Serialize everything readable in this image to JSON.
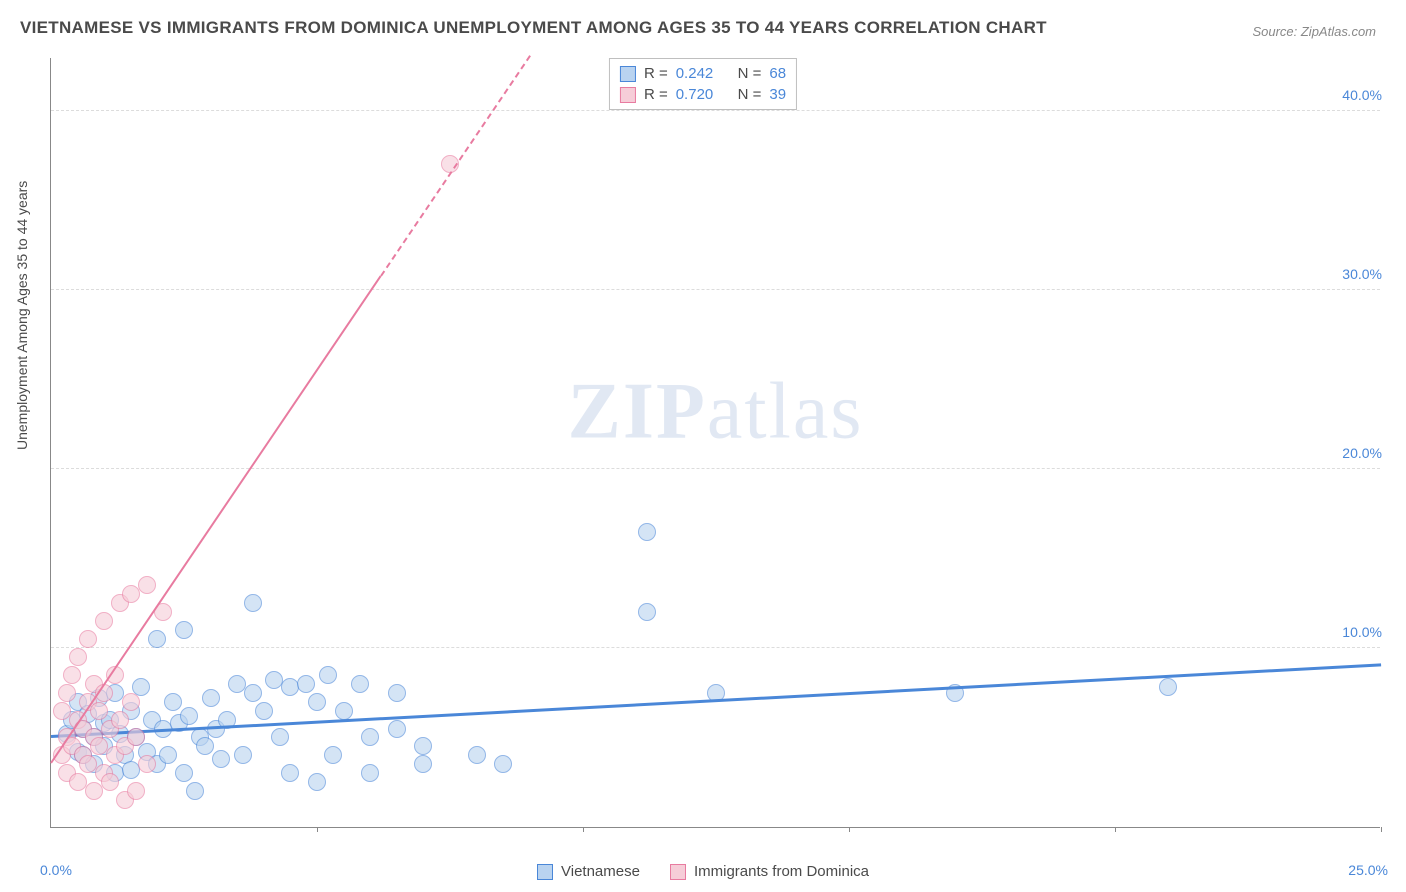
{
  "title": "VIETNAMESE VS IMMIGRANTS FROM DOMINICA UNEMPLOYMENT AMONG AGES 35 TO 44 YEARS CORRELATION CHART",
  "source": "Source: ZipAtlas.com",
  "ylabel": "Unemployment Among Ages 35 to 44 years",
  "watermark_a": "ZIP",
  "watermark_b": "atlas",
  "chart": {
    "type": "scatter",
    "background_color": "#ffffff",
    "grid_color": "#dcdcdc",
    "axis_color": "#888888",
    "tick_label_color": "#4a87d8",
    "tick_fontsize": 14,
    "xlim": [
      0,
      25
    ],
    "ylim": [
      0,
      43
    ],
    "xticks": [
      0,
      5,
      10,
      15,
      20,
      25
    ],
    "xtick_labels": {
      "min": "0.0%",
      "max": "25.0%"
    },
    "yticks": [
      10,
      20,
      30,
      40
    ],
    "ytick_labels": [
      "10.0%",
      "20.0%",
      "30.0%",
      "40.0%"
    ],
    "marker_radius": 9,
    "marker_opacity": 0.6,
    "series": [
      {
        "name": "Vietnamese",
        "color_fill": "#b9d3f0",
        "color_stroke": "#4a87d8",
        "R": "0.242",
        "N": "68",
        "trend": {
          "x1": 0,
          "y1": 5.0,
          "x2": 25,
          "y2": 9.0,
          "width": 2.5
        },
        "points": [
          [
            0.3,
            5.2
          ],
          [
            0.4,
            6.0
          ],
          [
            0.5,
            4.2
          ],
          [
            0.5,
            7.0
          ],
          [
            0.6,
            5.5
          ],
          [
            0.6,
            4.0
          ],
          [
            0.7,
            6.3
          ],
          [
            0.8,
            5.0
          ],
          [
            0.8,
            3.5
          ],
          [
            0.9,
            7.2
          ],
          [
            1.0,
            5.8
          ],
          [
            1.0,
            4.5
          ],
          [
            1.1,
            6.0
          ],
          [
            1.2,
            3.0
          ],
          [
            1.2,
            7.5
          ],
          [
            1.3,
            5.2
          ],
          [
            1.4,
            4.0
          ],
          [
            1.5,
            6.5
          ],
          [
            1.5,
            3.2
          ],
          [
            1.6,
            5.0
          ],
          [
            1.7,
            7.8
          ],
          [
            1.8,
            4.2
          ],
          [
            1.9,
            6.0
          ],
          [
            2.0,
            3.5
          ],
          [
            2.0,
            10.5
          ],
          [
            2.1,
            5.5
          ],
          [
            2.2,
            4.0
          ],
          [
            2.3,
            7.0
          ],
          [
            2.4,
            5.8
          ],
          [
            2.5,
            3.0
          ],
          [
            2.5,
            11.0
          ],
          [
            2.6,
            6.2
          ],
          [
            2.7,
            2.0
          ],
          [
            2.8,
            5.0
          ],
          [
            2.9,
            4.5
          ],
          [
            3.0,
            7.2
          ],
          [
            3.1,
            5.5
          ],
          [
            3.2,
            3.8
          ],
          [
            3.3,
            6.0
          ],
          [
            3.5,
            8.0
          ],
          [
            3.6,
            4.0
          ],
          [
            3.8,
            7.5
          ],
          [
            3.8,
            12.5
          ],
          [
            4.0,
            6.5
          ],
          [
            4.2,
            8.2
          ],
          [
            4.3,
            5.0
          ],
          [
            4.5,
            7.8
          ],
          [
            4.5,
            3.0
          ],
          [
            4.8,
            8.0
          ],
          [
            5.0,
            7.0
          ],
          [
            5.0,
            2.5
          ],
          [
            5.2,
            8.5
          ],
          [
            5.3,
            4.0
          ],
          [
            5.5,
            6.5
          ],
          [
            5.8,
            8.0
          ],
          [
            6.0,
            5.0
          ],
          [
            6.0,
            3.0
          ],
          [
            6.5,
            7.5
          ],
          [
            6.5,
            5.5
          ],
          [
            7.0,
            4.5
          ],
          [
            7.0,
            3.5
          ],
          [
            8.0,
            4.0
          ],
          [
            8.5,
            3.5
          ],
          [
            11.2,
            16.5
          ],
          [
            11.2,
            12.0
          ],
          [
            12.5,
            7.5
          ],
          [
            17.0,
            7.5
          ],
          [
            21.0,
            7.8
          ]
        ]
      },
      {
        "name": "Immigrants from Dominica",
        "color_fill": "#f6cdd8",
        "color_stroke": "#e87ba0",
        "R": "0.720",
        "N": "39",
        "trend": {
          "x1": 0,
          "y1": 3.5,
          "x2": 9.0,
          "y2": 43,
          "width": 2,
          "dash_from_x": 6.2
        },
        "points": [
          [
            0.2,
            4.0
          ],
          [
            0.2,
            6.5
          ],
          [
            0.3,
            5.0
          ],
          [
            0.3,
            3.0
          ],
          [
            0.3,
            7.5
          ],
          [
            0.4,
            4.5
          ],
          [
            0.4,
            8.5
          ],
          [
            0.5,
            2.5
          ],
          [
            0.5,
            6.0
          ],
          [
            0.5,
            9.5
          ],
          [
            0.6,
            4.0
          ],
          [
            0.6,
            5.5
          ],
          [
            0.7,
            3.5
          ],
          [
            0.7,
            7.0
          ],
          [
            0.7,
            10.5
          ],
          [
            0.8,
            5.0
          ],
          [
            0.8,
            2.0
          ],
          [
            0.8,
            8.0
          ],
          [
            0.9,
            4.5
          ],
          [
            0.9,
            6.5
          ],
          [
            1.0,
            3.0
          ],
          [
            1.0,
            7.5
          ],
          [
            1.0,
            11.5
          ],
          [
            1.1,
            5.5
          ],
          [
            1.1,
            2.5
          ],
          [
            1.2,
            4.0
          ],
          [
            1.2,
            8.5
          ],
          [
            1.3,
            6.0
          ],
          [
            1.3,
            12.5
          ],
          [
            1.4,
            4.5
          ],
          [
            1.4,
            1.5
          ],
          [
            1.5,
            7.0
          ],
          [
            1.5,
            13.0
          ],
          [
            1.6,
            5.0
          ],
          [
            1.6,
            2.0
          ],
          [
            1.8,
            13.5
          ],
          [
            1.8,
            3.5
          ],
          [
            2.1,
            12.0
          ],
          [
            7.5,
            37.0
          ]
        ]
      }
    ],
    "legend": [
      "Vietnamese",
      "Immigrants from Dominica"
    ]
  }
}
